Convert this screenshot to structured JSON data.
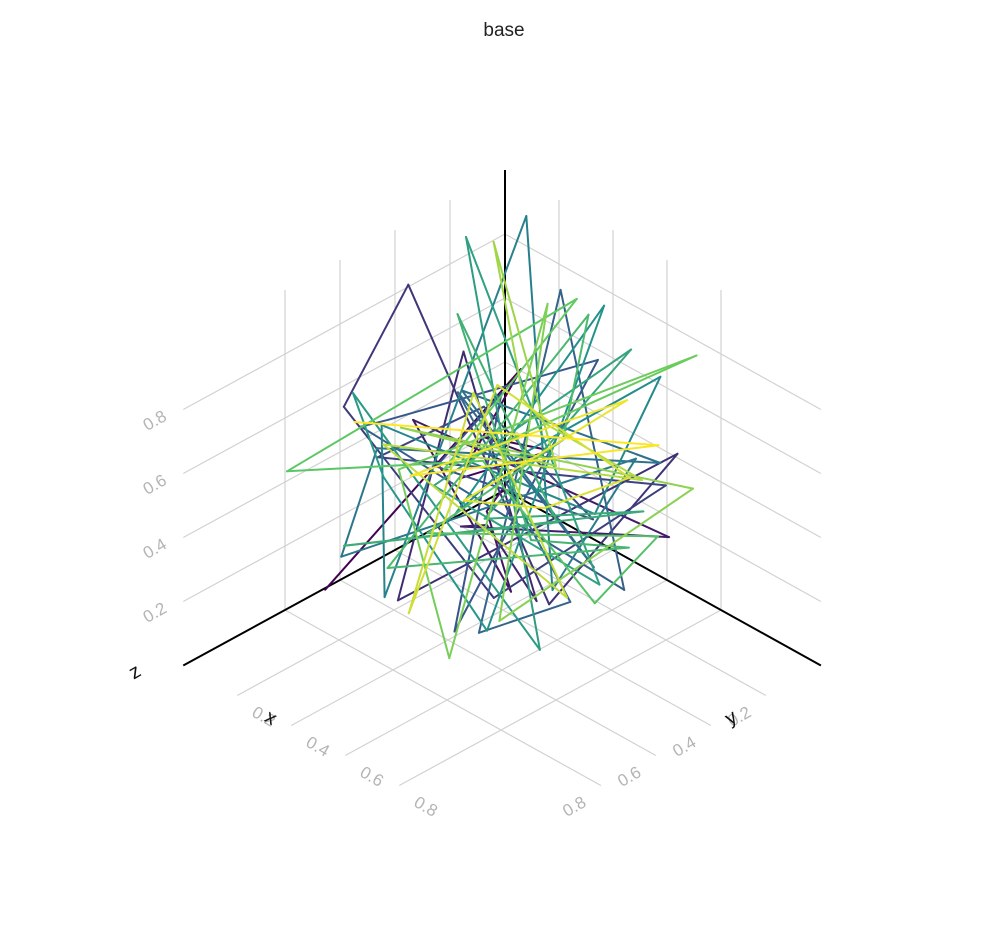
{
  "chart_data": {
    "type": "line",
    "projection": "3d",
    "title": "base",
    "axes": {
      "x": {
        "label": "x",
        "range": [
          0,
          1
        ],
        "ticks": [
          0.2,
          0.4,
          0.6,
          0.8
        ],
        "tick_labels": [
          "0.2",
          "0.4",
          "0.6",
          "0.8"
        ]
      },
      "y": {
        "label": "y",
        "range": [
          0,
          1
        ],
        "ticks": [
          0.2,
          0.4,
          0.6,
          0.8
        ],
        "tick_labels": [
          "0.2",
          "0.4",
          "0.6",
          "0.8"
        ]
      },
      "z": {
        "label": "z",
        "range": [
          0,
          1
        ],
        "ticks": [
          0.2,
          0.4,
          0.6,
          0.8
        ],
        "tick_labels": [
          "0.2",
          "0.4",
          "0.6",
          "0.8"
        ]
      }
    },
    "grid": true,
    "legend": "none",
    "colormap": "viridis",
    "colormap_stops": [
      "#440154",
      "#3b528b",
      "#21918c",
      "#5ec962",
      "#fde725"
    ],
    "series": [
      {
        "color_by": "index",
        "x": [
          0.21,
          0.15,
          0.33,
          0.78,
          0.07,
          0.89,
          0.35,
          0.45,
          0.22,
          0.75,
          0.58,
          0.3,
          0.83,
          0.05,
          0.53,
          0.69,
          0.53,
          0.09,
          0.35,
          0.59,
          0.85,
          0.13,
          0.37,
          0.54,
          0.58,
          0.12,
          0.76,
          0.68,
          0.26,
          0.19,
          0.91,
          0.43,
          0.82,
          0.69,
          0.08,
          0.95,
          0.34,
          0.84,
          0.26,
          0.29,
          0.11,
          0.77,
          0.94,
          0.14,
          0.43,
          0.47,
          0.73,
          0.83,
          0.6,
          0.24,
          0.52,
          0.86,
          0.11,
          0.18,
          0.72,
          0.1,
          0.89,
          0.49,
          0.62,
          0.21,
          0.95,
          0.28,
          0.56,
          0.15,
          0.83,
          0.55,
          0.37,
          0.36,
          0.53,
          0.67,
          0.77,
          0.75,
          0.54,
          0.14,
          0.49,
          0.12,
          0.76,
          0.36,
          0.7,
          0.27,
          0.57,
          0.9,
          0.45,
          0.26,
          0.07,
          0.71,
          0.48,
          0.67,
          0.14,
          0.82,
          0.25,
          0.55,
          0.44,
          0.93,
          0.37,
          0.52,
          0.88,
          0.22,
          0.68,
          0.41
        ],
        "y": [
          0.86,
          0.09,
          0.49,
          0.6,
          0.15,
          0.79,
          0.41,
          0.42,
          0.55,
          0.14,
          0.73,
          0.36,
          0.7,
          0.2,
          0.91,
          0.05,
          0.36,
          0.44,
          0.93,
          0.62,
          0.25,
          0.59,
          0.44,
          0.21,
          0.82,
          0.13,
          0.93,
          0.33,
          0.68,
          0.71,
          0.46,
          0.22,
          0.9,
          0.44,
          0.25,
          0.61,
          0.49,
          0.26,
          0.72,
          0.88,
          0.13,
          0.28,
          0.75,
          0.06,
          0.86,
          0.91,
          0.39,
          0.25,
          0.55,
          0.42,
          0.15,
          0.91,
          0.55,
          0.73,
          0.58,
          0.24,
          0.53,
          0.74,
          0.15,
          0.28,
          0.43,
          0.86,
          0.36,
          0.32,
          0.72,
          0.09,
          0.79,
          0.05,
          0.31,
          0.94,
          0.2,
          0.41,
          0.61,
          0.93,
          0.22,
          0.34,
          0.05,
          0.74,
          0.89,
          0.11,
          0.58,
          0.2,
          0.82,
          0.07,
          0.11,
          0.63,
          0.33,
          0.16,
          0.58,
          0.58,
          0.36,
          0.89,
          0.46,
          0.46,
          0.22,
          0.66,
          0.42,
          0.56,
          0.11,
          0.95
        ],
        "z": [
          0.19,
          0.49,
          0.42,
          0.77,
          0.27,
          0.9,
          0.29,
          0.09,
          0.58,
          0.27,
          0.5,
          0.2,
          0.37,
          0.55,
          0.33,
          0.46,
          0.06,
          0.89,
          0.86,
          0.23,
          0.53,
          0.44,
          0.64,
          0.26,
          0.73,
          0.42,
          0.35,
          0.88,
          0.66,
          0.62,
          0.33,
          0.93,
          0.36,
          0.18,
          0.46,
          0.49,
          0.7,
          0.6,
          0.59,
          0.34,
          0.07,
          0.59,
          0.48,
          0.95,
          0.27,
          0.85,
          0.45,
          0.86,
          0.64,
          0.23,
          0.89,
          0.39,
          0.35,
          0.73,
          0.11,
          0.95,
          0.37,
          0.59,
          0.8,
          0.14,
          0.58,
          0.36,
          0.33,
          0.77,
          0.57,
          0.12,
          0.3,
          0.74,
          0.55,
          0.62,
          0.31,
          0.19,
          0.63,
          0.56,
          0.93,
          0.28,
          0.8,
          0.58,
          0.22,
          0.76,
          0.13,
          0.52,
          0.79,
          0.23,
          0.86,
          0.91,
          0.59,
          0.42,
          0.48,
          0.32,
          0.59,
          0.29,
          0.75,
          0.69,
          0.22,
          0.52,
          0.89,
          0.41,
          0.51,
          0.85
        ]
      }
    ]
  }
}
